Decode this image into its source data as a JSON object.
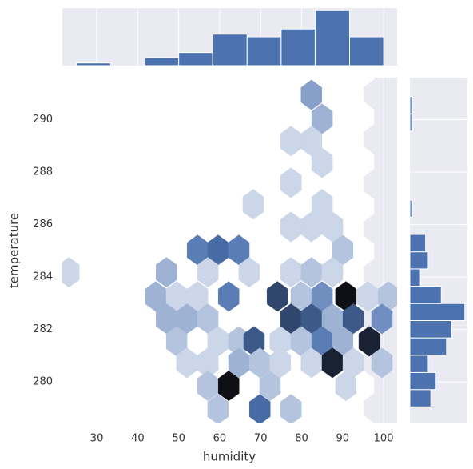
{
  "chart_data": [
    {
      "type": "hexbin",
      "x_label": "humidity",
      "y_label": "temperature",
      "xlim": [
        21.6,
        103.3
      ],
      "ylim": [
        278.45,
        291.6
      ],
      "xticks": [
        30,
        40,
        50,
        60,
        70,
        80,
        90,
        100
      ],
      "yticks": [
        280,
        282,
        284,
        286,
        288,
        290
      ],
      "color": "#4c72b0",
      "grid": true,
      "x": [
        82.4,
        85.0,
        77.4,
        82.4,
        85.0,
        77.4,
        68.2,
        85.0,
        77.4,
        82.4,
        87.5,
        90.0,
        54.6,
        59.6,
        64.7,
        23.2,
        47.0,
        57.1,
        67.2,
        77.4,
        82.4,
        87.5,
        44.4,
        49.5,
        54.6,
        62.2,
        74.1,
        79.9,
        85.0,
        90.8,
        96.1,
        101.2,
        47.0,
        52.0,
        57.1,
        77.4,
        82.4,
        87.5,
        92.6,
        99.6,
        49.5,
        59.6,
        64.7,
        68.4,
        74.8,
        79.9,
        85.0,
        90.0,
        96.5,
        52.0,
        57.1,
        64.7,
        69.8,
        74.8,
        82.4,
        87.5,
        92.6,
        99.6,
        57.1,
        62.2,
        72.3,
        90.8,
        59.6,
        69.8,
        77.4
      ],
      "y": [
        290.94,
        290.03,
        289.18,
        289.18,
        288.35,
        287.59,
        286.77,
        286.77,
        285.91,
        285.91,
        285.91,
        285.03,
        285.03,
        285.03,
        285.03,
        284.18,
        284.18,
        284.18,
        284.18,
        284.18,
        284.18,
        284.18,
        283.26,
        283.26,
        283.26,
        283.26,
        283.26,
        283.26,
        283.26,
        283.26,
        283.26,
        283.26,
        282.41,
        282.41,
        282.41,
        282.41,
        282.41,
        282.41,
        282.41,
        282.41,
        281.55,
        281.55,
        281.55,
        281.55,
        281.55,
        281.55,
        281.55,
        281.55,
        281.55,
        280.73,
        280.73,
        280.73,
        280.73,
        280.73,
        280.73,
        280.73,
        280.73,
        280.73,
        279.85,
        279.85,
        279.85,
        279.85,
        278.96,
        278.96,
        278.96
      ],
      "counts": [
        4,
        3,
        1,
        1,
        1,
        1,
        1,
        1,
        1,
        1,
        1,
        2,
        6,
        7,
        6,
        1,
        3,
        1,
        1,
        1,
        2,
        1,
        3,
        1,
        1,
        6,
        9,
        2,
        5,
        12,
        1,
        2,
        3,
        3,
        2,
        9,
        8,
        3,
        8,
        5,
        2,
        1,
        2,
        8,
        1,
        2,
        6,
        3,
        11,
        1,
        1,
        3,
        2,
        1,
        1,
        11,
        1,
        2,
        2,
        12,
        2,
        1,
        2,
        7,
        2
      ]
    },
    {
      "type": "histogram",
      "orientation": "vertical",
      "color": "#4c72b0",
      "bins": [
        25,
        33.4,
        41.7,
        50,
        58.3,
        66.7,
        75,
        83.3,
        91.7,
        100
      ],
      "values": [
        1,
        0,
        3,
        5,
        12,
        11,
        14,
        21,
        11
      ],
      "ylim": [
        0,
        22
      ]
    },
    {
      "type": "histogram",
      "orientation": "horizontal",
      "color": "#4c72b0",
      "bins": [
        279.05,
        279.71,
        280.36,
        281.02,
        281.68,
        282.34,
        282.99,
        283.65,
        284.31,
        284.96,
        285.62,
        286.28,
        286.93,
        287.59,
        288.25,
        288.91,
        289.56,
        290.22,
        290.88
      ],
      "values": [
        8,
        10,
        7,
        14,
        16,
        21,
        12,
        4,
        7,
        6,
        0,
        1,
        0,
        0,
        0,
        0,
        1,
        1
      ],
      "xlim": [
        0,
        22
      ]
    }
  ]
}
